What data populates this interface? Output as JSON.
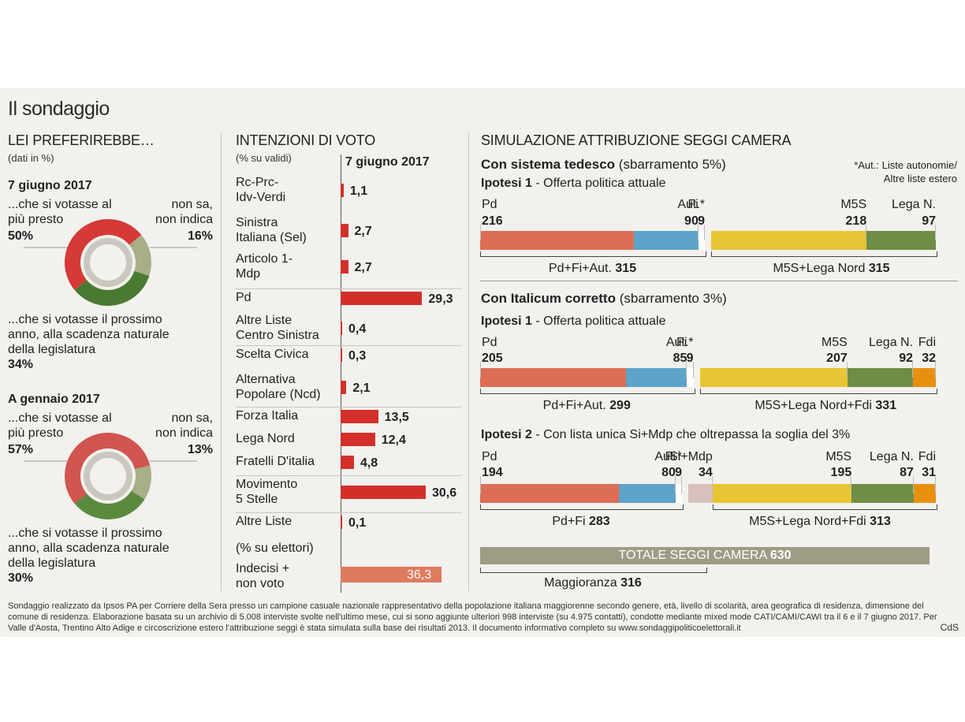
{
  "title": "Il sondaggio",
  "left": {
    "heading": "LEI PREFERIREBBE…",
    "note": "(dati in %)",
    "blocks": [
      {
        "date": "7 giugno 2017",
        "a_label": [
          "...che si votasse al",
          "più presto"
        ],
        "a_value": "50%",
        "b_label": [
          "non sa,",
          "non indica"
        ],
        "b_value": "16%",
        "c_label": [
          "...che si votasse il prossimo",
          "anno, alla scadenza naturale",
          "della legislatura"
        ],
        "c_value": "34%"
      },
      {
        "date": "A gennaio 2017",
        "a_label": [
          "...che si votasse al",
          "più presto"
        ],
        "a_value": "57%",
        "b_label": [
          "non sa,",
          "non indica"
        ],
        "b_value": "13%",
        "c_label": [
          "...che si votasse il prossimo",
          "anno, alla scadenza naturale",
          "della legislatura"
        ],
        "c_value": "30%"
      }
    ],
    "colors": {
      "soon": "#d63a36",
      "dontknow": "#a8ae88",
      "natural": "#4a7a32"
    }
  },
  "middle": {
    "heading": "INTENZIONI DI VOTO",
    "subheading": "(% su validi)",
    "date": "7 giugno 2017",
    "electors_label": "(% su elettori)"
  },
  "chart_data": [
    {
      "type": "pie",
      "title": "7 giugno 2017",
      "categories": [
        "...che si votasse al più presto",
        "non sa, non indica",
        "...che si votasse il prossimo anno, alla scadenza naturale della legislatura"
      ],
      "values": [
        50,
        16,
        34
      ],
      "colors": [
        "#d63a36",
        "#a8ae88",
        "#4a7a32"
      ]
    },
    {
      "type": "pie",
      "title": "A gennaio 2017",
      "categories": [
        "...che si votasse al più presto",
        "non sa, non indica",
        "...che si votasse il prossimo anno, alla scadenza naturale della legislatura"
      ],
      "values": [
        57,
        13,
        30
      ],
      "colors": [
        "#d05550",
        "#a8ae88",
        "#5b8a3e"
      ]
    },
    {
      "type": "bar",
      "title": "INTENZIONI DI VOTO",
      "rows": [
        {
          "label": [
            "Rc-Prc-",
            "Idv-Verdi"
          ],
          "value": 1.1,
          "display": "1,1"
        },
        {
          "label": [
            "Sinistra",
            "Italiana (Sel)"
          ],
          "value": 2.7,
          "display": "2,7"
        },
        {
          "label": [
            "Articolo 1-",
            "Mdp"
          ],
          "value": 2.7,
          "display": "2,7"
        },
        {
          "label": [
            "Pd"
          ],
          "value": 29.3,
          "display": "29,3"
        },
        {
          "label": [
            "Altre Liste",
            "Centro Sinistra"
          ],
          "value": 0.4,
          "display": "0,4"
        },
        {
          "label": [
            "Scelta Civica"
          ],
          "value": 0.3,
          "display": "0,3"
        },
        {
          "label": [
            "Alternativa",
            "Popolare (Ncd)"
          ],
          "value": 2.1,
          "display": "2,1"
        },
        {
          "label": [
            "Forza Italia"
          ],
          "value": 13.5,
          "display": "13,5"
        },
        {
          "label": [
            "Lega Nord"
          ],
          "value": 12.4,
          "display": "12,4"
        },
        {
          "label": [
            "Fratelli D'italia"
          ],
          "value": 4.8,
          "display": "4,8"
        },
        {
          "label": [
            "Movimento",
            "5 Stelle"
          ],
          "value": 30.6,
          "display": "30,6"
        },
        {
          "label": [
            "Altre Liste"
          ],
          "value": 0.1,
          "display": "0,1"
        }
      ],
      "undecided": {
        "label": [
          "Indecisi +",
          "non voto"
        ],
        "value": 36.3,
        "display": "36,3"
      },
      "colors": {
        "bar": "#d32f2a",
        "undecided": "#e07a5f"
      }
    },
    {
      "type": "bar",
      "title": "SIMULAZIONE ATTRIBUZIONE SEGGI CAMERA",
      "scenarios": [
        {
          "system": "Con sistema tedesco",
          "threshold": "(sbarramento 5%)",
          "hyp": "Ipotesi 1",
          "hyp_desc": " - Offerta politica attuale",
          "parties": [
            {
              "name": "Pd",
              "seats": 216,
              "color": "#dd6e55"
            },
            {
              "name": "Fi",
              "seats": 90,
              "color": "#5ea3c9"
            },
            {
              "name": "Aut.*",
              "seats": 9,
              "color": "#ffffff"
            },
            {
              "name": "M5S",
              "seats": 218,
              "color": "#e8c532"
            },
            {
              "name": "Lega N.",
              "seats": 97,
              "color": "#6f8d45"
            }
          ],
          "left_total_label": "Pd+Fi+Aut.",
          "left_total": 315,
          "right_total_label": "M5S+Lega Nord",
          "right_total": 315
        },
        {
          "system": "Con Italicum corretto",
          "threshold": "(sbarramento 3%)",
          "hyp": "Ipotesi 1",
          "hyp_desc": " - Offerta politica attuale",
          "parties": [
            {
              "name": "Pd",
              "seats": 205,
              "color": "#dd6e55"
            },
            {
              "name": "Fi",
              "seats": 85,
              "color": "#5ea3c9"
            },
            {
              "name": "Aut.*",
              "seats": 9,
              "color": "#ffffff"
            },
            {
              "name": "M5S",
              "seats": 207,
              "color": "#e8c532"
            },
            {
              "name": "Lega N.",
              "seats": 92,
              "color": "#6f8d45"
            },
            {
              "name": "Fdi",
              "seats": 32,
              "color": "#e8900e"
            }
          ],
          "left_total_label": "Pd+Fi+Aut.",
          "left_total": 299,
          "right_total_label": "M5S+Lega Nord+Fdi",
          "right_total": 331
        },
        {
          "hyp": "Ipotesi 2",
          "hyp_desc": " - Con lista unica Si+Mdp che oltrepassa  la soglia del 3%",
          "parties": [
            {
              "name": "Pd",
              "seats": 194,
              "color": "#dd6e55"
            },
            {
              "name": "Fi",
              "seats": 80,
              "color": "#5ea3c9"
            },
            {
              "name": "Aut.*",
              "seats": 9,
              "color": "#ffffff"
            },
            {
              "name": "Si+Mdp",
              "seats": 34,
              "color": "#d8c0bd"
            },
            {
              "name": "M5S",
              "seats": 195,
              "color": "#e8c532"
            },
            {
              "name": "Lega N.",
              "seats": 87,
              "color": "#6f8d45"
            },
            {
              "name": "Fdi",
              "seats": 31,
              "color": "#e8900e"
            }
          ],
          "left_total_label": "Pd+Fi",
          "left_total": 283,
          "right_total_label": "M5S+Lega Nord+Fdi",
          "right_total": 313
        }
      ],
      "total_label": "TOTALE SEGGI CAMERA",
      "total": 630,
      "majority_label": "Maggioranza",
      "majority": 316
    }
  ],
  "right": {
    "heading": "SIMULAZIONE ATTRIBUZIONE SEGGI CAMERA",
    "aut_note": [
      "*Aut.: Liste autonomie/",
      "Altre liste estero"
    ]
  },
  "footer": {
    "text": "Sondaggio realizzato da Ipsos PA per Corriere della Sera presso un campione casuale nazionale rappresentativo della popolazione italiana maggiorenne secondo genere, età, livello di scolarità, area geografica di residenza, dimensione del comune di residenza. Elaborazione basata su un archivio di 5.008 interviste svolte nell'ultimo mese, cui si sono aggiunte ulteriori 998 interviste (su 4.975 contatti), condotte mediante mixed mode CATI/CAMI/CAWI tra il 6 e il 7 giugno 2017. Per Valle d'Aosta, Trentino Alto Adige e circoscrizione estero l'attribuzione seggi è stata simulata sulla base dei risultati 2013. Il documento informativo completo su www.sondaggipoliticoelettorali.it",
    "credit": "CdS"
  }
}
